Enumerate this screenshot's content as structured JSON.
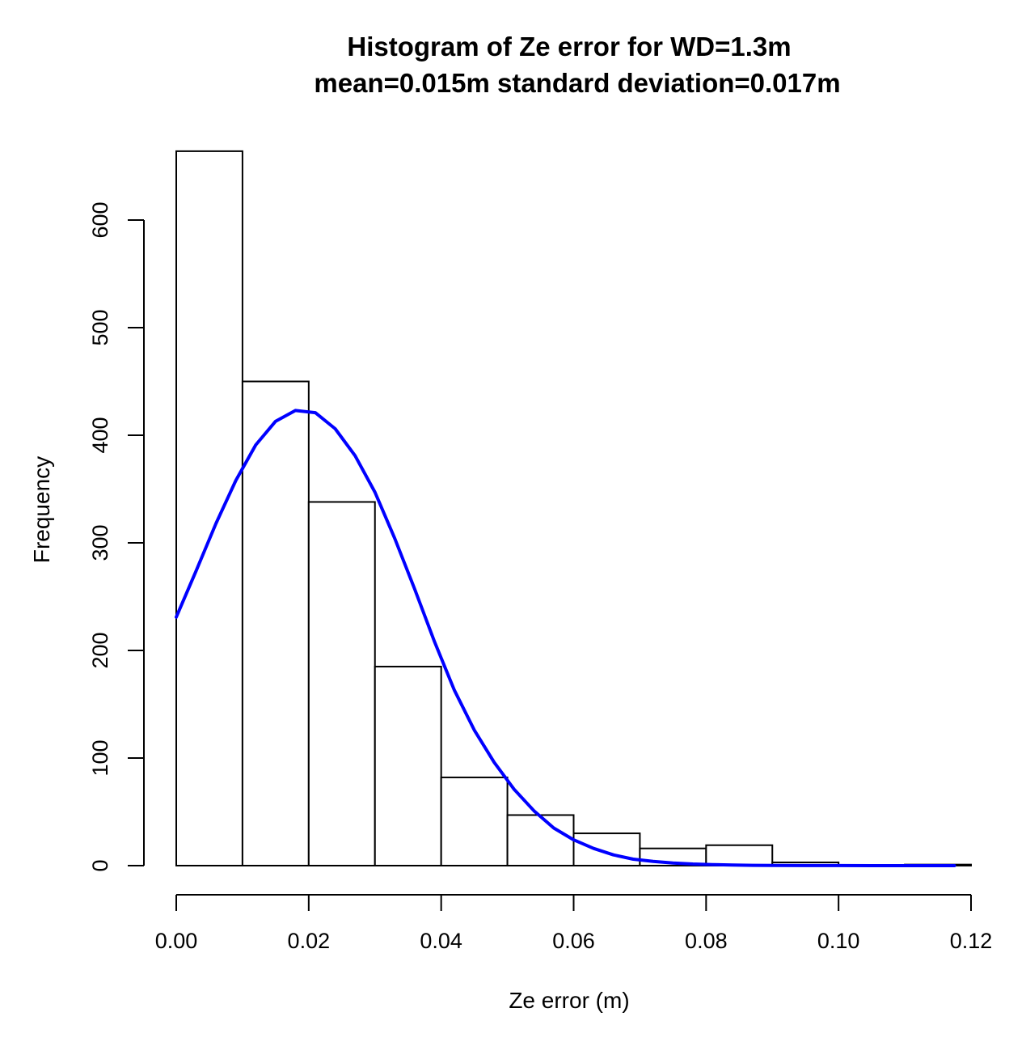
{
  "chart_data": {
    "type": "bar",
    "title": "Histogram of Ze error for WD=1.3m",
    "subtitle": "mean=0.015m  standard deviation=0.017m",
    "xlabel": "Ze error (m)",
    "ylabel": "Frequency",
    "xlim": [
      0.0,
      0.12
    ],
    "ylim": [
      0,
      650
    ],
    "x_ticks": [
      "0.00",
      "0.02",
      "0.04",
      "0.06",
      "0.08",
      "0.10",
      "0.12"
    ],
    "y_ticks": [
      "0",
      "100",
      "200",
      "300",
      "400",
      "500",
      "600"
    ],
    "bins": [
      {
        "from": 0.0,
        "to": 0.01,
        "count": 664
      },
      {
        "from": 0.01,
        "to": 0.02,
        "count": 450
      },
      {
        "from": 0.02,
        "to": 0.03,
        "count": 338
      },
      {
        "from": 0.03,
        "to": 0.04,
        "count": 185
      },
      {
        "from": 0.04,
        "to": 0.05,
        "count": 82
      },
      {
        "from": 0.05,
        "to": 0.06,
        "count": 47
      },
      {
        "from": 0.06,
        "to": 0.07,
        "count": 30
      },
      {
        "from": 0.07,
        "to": 0.08,
        "count": 16
      },
      {
        "from": 0.08,
        "to": 0.09,
        "count": 19
      },
      {
        "from": 0.09,
        "to": 0.1,
        "count": 3
      },
      {
        "from": 0.1,
        "to": 0.11,
        "count": 0
      },
      {
        "from": 0.11,
        "to": 0.12,
        "count": 1
      }
    ],
    "curve": {
      "color": "#0000ff",
      "x": [
        0.0,
        0.003,
        0.006,
        0.009,
        0.012,
        0.015,
        0.018,
        0.021,
        0.024,
        0.027,
        0.03,
        0.033,
        0.036,
        0.039,
        0.042,
        0.045,
        0.048,
        0.051,
        0.054,
        0.057,
        0.06,
        0.063,
        0.066,
        0.069,
        0.072,
        0.075,
        0.078,
        0.081,
        0.084,
        0.087,
        0.09,
        0.095,
        0.1,
        0.105,
        0.11,
        0.115,
        0.1175
      ],
      "y": [
        231,
        274,
        318,
        358,
        391,
        413,
        423,
        421,
        406,
        381,
        347,
        304,
        257,
        208,
        163,
        126,
        96,
        71,
        51,
        35,
        24,
        16,
        10,
        6,
        4,
        2.5,
        1.5,
        1,
        0.5,
        0.3,
        0.2,
        0.1,
        0.05,
        0,
        0,
        0,
        0
      ]
    }
  }
}
